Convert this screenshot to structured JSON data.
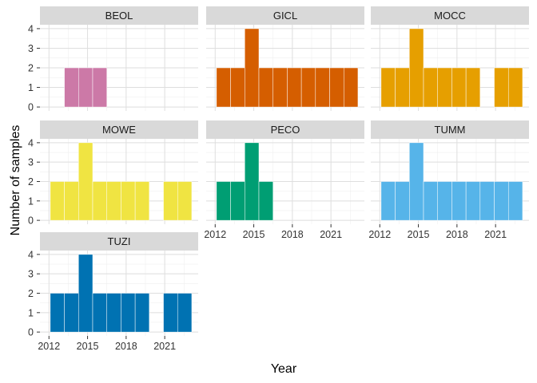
{
  "chart_data": {
    "type": "bar",
    "subtype": "faceted-histogram",
    "xlabel": "Year",
    "ylabel": "Number of samples",
    "x_ticks": [
      2012,
      2015,
      2018,
      2021
    ],
    "y_ticks": [
      0,
      1,
      2,
      3,
      4
    ],
    "ylim": [
      0,
      4
    ],
    "xlim": [
      2011.3,
      2023.6
    ],
    "bin_width": 1.1,
    "bin_starts": [
      2012.1,
      2013.2,
      2014.3,
      2015.4,
      2016.5,
      2017.6,
      2018.7,
      2019.8,
      2020.9,
      2022.0
    ],
    "grid": true,
    "legend": "none",
    "panels": [
      {
        "name": "BEOL",
        "color": "#CC79A7",
        "counts": [
          0,
          2,
          2,
          2,
          0,
          0,
          0,
          0,
          0,
          0
        ]
      },
      {
        "name": "GICL",
        "color": "#D55E00",
        "counts": [
          2,
          2,
          4,
          2,
          2,
          2,
          2,
          2,
          2,
          2
        ]
      },
      {
        "name": "MOCC",
        "color": "#E69F00",
        "counts": [
          2,
          2,
          4,
          2,
          2,
          2,
          2,
          0,
          2,
          2
        ]
      },
      {
        "name": "MOWE",
        "color": "#F0E442",
        "counts": [
          2,
          2,
          4,
          2,
          2,
          2,
          2,
          0,
          2,
          2
        ]
      },
      {
        "name": "PECO",
        "color": "#009E73",
        "counts": [
          2,
          2,
          4,
          2,
          0,
          0,
          0,
          0,
          0,
          0
        ]
      },
      {
        "name": "TUMM",
        "color": "#56B4E9",
        "counts": [
          2,
          2,
          4,
          2,
          2,
          2,
          2,
          2,
          2,
          2
        ]
      },
      {
        "name": "TUZI",
        "color": "#0072B2",
        "counts": [
          2,
          2,
          4,
          2,
          2,
          2,
          2,
          0,
          2,
          2
        ]
      }
    ]
  }
}
